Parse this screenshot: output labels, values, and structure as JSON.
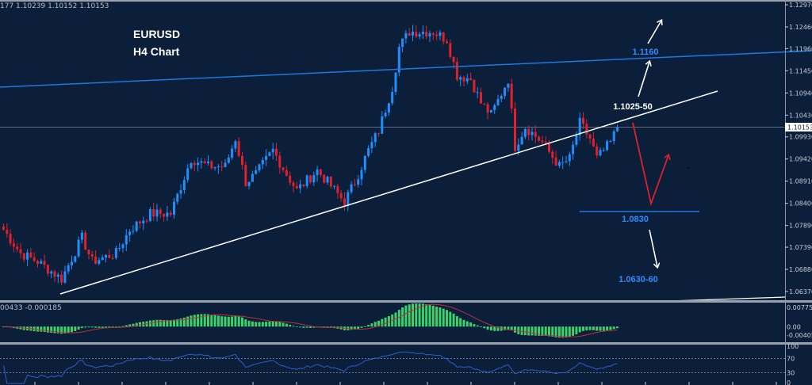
{
  "header": {
    "ohlc_info": "177 1.10239 1.10152 1.10153",
    "symbol": "EURUSD",
    "timeframe_label": "H4 Chart"
  },
  "annotations": {
    "target_high": "1.1160",
    "resistance": "1.1025-50",
    "support": "1.0830",
    "target_low": "1.0630-60"
  },
  "colors": {
    "background": "#0b1f3a",
    "bull": "#1e8fff",
    "bear": "#e0202a",
    "macd_hist": "#3ad36a",
    "macd_signal": "#c0303a",
    "rsi": "#2a5fd0",
    "channel_line": "#1e78e0",
    "trend_line": "#ffffff"
  },
  "chart_data": {
    "type": "candlestick",
    "title": "EURUSD H4 Chart",
    "current_price": 1.10153,
    "current_price_label": "1.10153",
    "ylim": [
      1.0637,
      1.1297
    ],
    "price_ticks": [
      "1.12970",
      "1.12460",
      "1.11960",
      "1.11450",
      "1.10940",
      "1.10430",
      "1.09930",
      "1.09420",
      "1.08910",
      "1.08400",
      "1.07890",
      "1.07390",
      "1.06880",
      "1.06370"
    ],
    "price_tick_values": [
      1.1297,
      1.1246,
      1.1196,
      1.1145,
      1.1094,
      1.1043,
      1.0993,
      1.0942,
      1.0891,
      1.084,
      1.0789,
      1.0739,
      1.0688,
      1.0637
    ],
    "candle_count": 181,
    "close_waypoints": [
      [
        0,
        1.0779
      ],
      [
        5,
        1.0725
      ],
      [
        10,
        1.0706
      ],
      [
        17,
        1.0666
      ],
      [
        23,
        1.0761
      ],
      [
        26,
        1.0706
      ],
      [
        33,
        1.0725
      ],
      [
        37,
        1.0779
      ],
      [
        43,
        1.0816
      ],
      [
        49,
        1.0816
      ],
      [
        55,
        1.0943
      ],
      [
        60,
        1.0925
      ],
      [
        65,
        1.0925
      ],
      [
        68,
        1.0989
      ],
      [
        71,
        1.0889
      ],
      [
        74,
        1.0907
      ],
      [
        79,
        1.0962
      ],
      [
        83,
        1.0907
      ],
      [
        86,
        1.087
      ],
      [
        92,
        1.0916
      ],
      [
        95,
        1.0889
      ],
      [
        100,
        1.0843
      ],
      [
        103,
        1.0889
      ],
      [
        107,
        1.0962
      ],
      [
        110,
        1.1007
      ],
      [
        114,
        1.1107
      ],
      [
        116,
        1.1199
      ],
      [
        119,
        1.1235
      ],
      [
        126,
        1.1235
      ],
      [
        130,
        1.1217
      ],
      [
        133,
        1.1135
      ],
      [
        137,
        1.1126
      ],
      [
        140,
        1.1071
      ],
      [
        143,
        1.1044
      ],
      [
        148,
        1.1126
      ],
      [
        150,
        1.0971
      ],
      [
        153,
        1.1016
      ],
      [
        158,
        1.098
      ],
      [
        163,
        1.0925
      ],
      [
        166,
        1.0943
      ],
      [
        169,
        1.1025
      ],
      [
        172,
        1.0989
      ],
      [
        174,
        1.0943
      ],
      [
        178,
        1.098
      ],
      [
        180,
        1.10153
      ]
    ],
    "macd": {
      "label": "00433 -0.000185",
      "ticks": [
        "0.007755",
        "0.00",
        "-0.00405"
      ],
      "tick_values": [
        0.007755,
        0,
        -0.00405
      ]
    },
    "rsi": {
      "ticks": [
        "100",
        "70",
        "30",
        "0"
      ],
      "tick_values": [
        100,
        70,
        30,
        0
      ]
    }
  }
}
